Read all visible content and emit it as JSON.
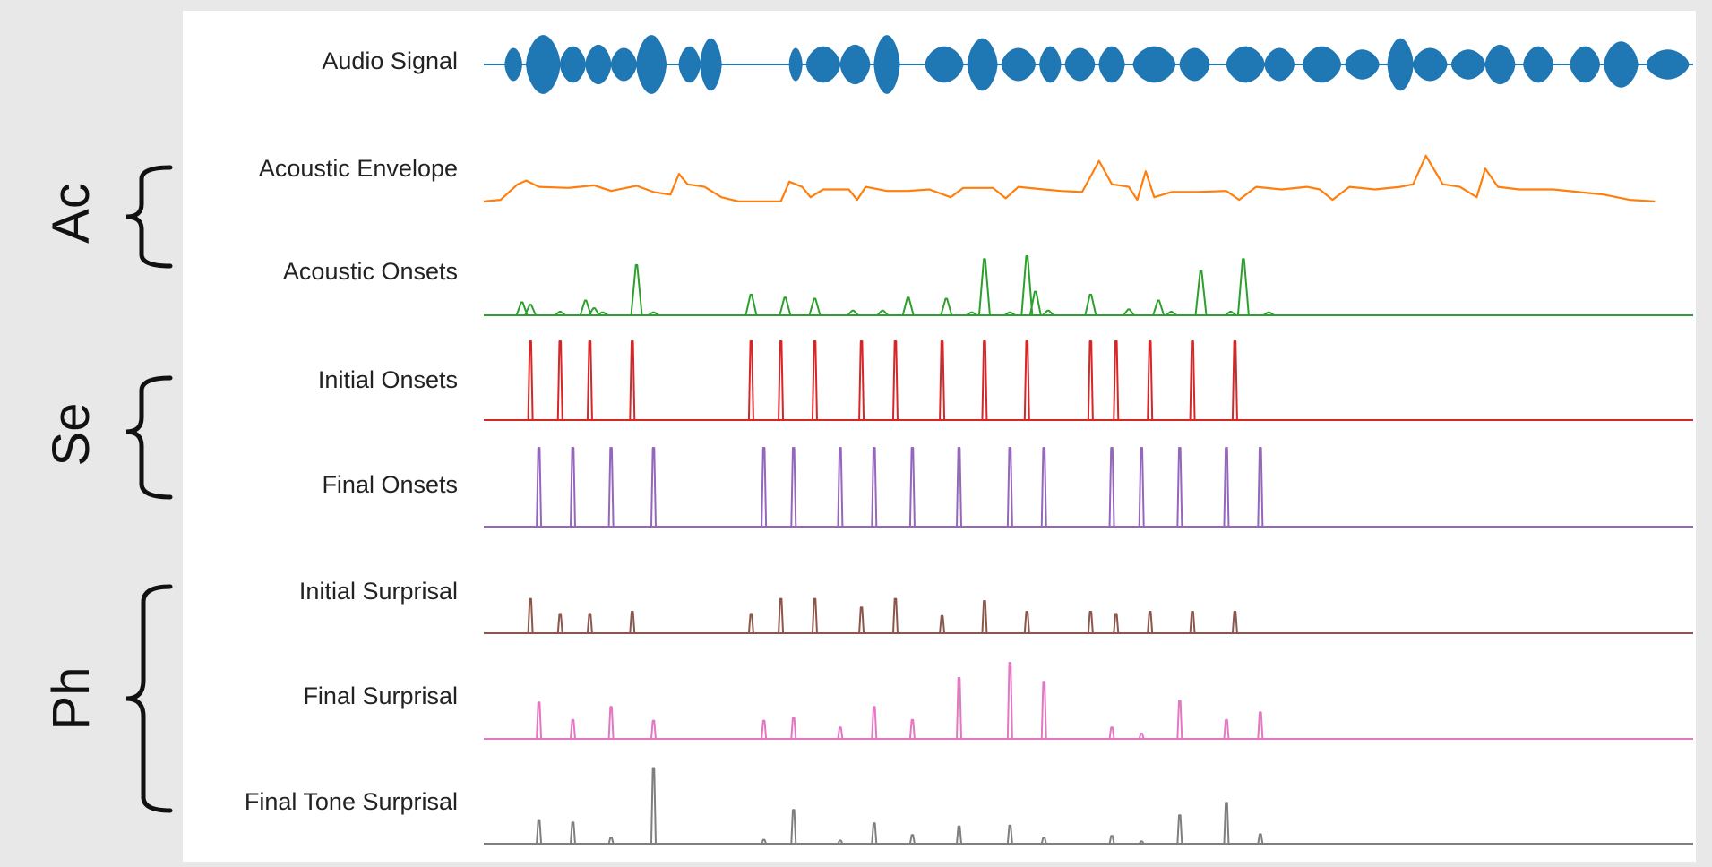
{
  "groups": [
    {
      "label": "Ac",
      "tracks": [
        "envelope",
        "acoustic_onsets"
      ]
    },
    {
      "label": "Se",
      "tracks": [
        "initial_onsets",
        "final_onsets"
      ]
    },
    {
      "label": "Ph",
      "tracks": [
        "initial_surprisal",
        "final_surprisal",
        "final_tone_surprisal"
      ]
    }
  ],
  "tracks": [
    {
      "id": "audio",
      "label": "Audio Signal",
      "color": "#1f77b4",
      "kind": "waveform",
      "segments": [
        [
          0.05,
          0.09,
          0.5
        ],
        [
          0.1,
          0.18,
          0.9
        ],
        [
          0.18,
          0.24,
          0.55
        ],
        [
          0.24,
          0.3,
          0.6
        ],
        [
          0.3,
          0.36,
          0.5
        ],
        [
          0.36,
          0.43,
          0.9
        ],
        [
          0.46,
          0.51,
          0.55
        ],
        [
          0.51,
          0.56,
          0.8
        ],
        [
          0.72,
          0.75,
          0.5
        ],
        [
          0.76,
          0.84,
          0.55
        ],
        [
          0.84,
          0.91,
          0.6
        ],
        [
          0.92,
          0.98,
          0.9
        ],
        [
          1.04,
          1.13,
          0.55
        ],
        [
          1.14,
          1.21,
          0.8
        ],
        [
          1.22,
          1.3,
          0.5
        ],
        [
          1.31,
          1.36,
          0.55
        ],
        [
          1.37,
          1.44,
          0.5
        ],
        [
          1.45,
          1.51,
          0.55
        ],
        [
          1.53,
          1.63,
          0.55
        ],
        [
          1.64,
          1.71,
          0.5
        ],
        [
          1.75,
          1.84,
          0.55
        ],
        [
          1.84,
          1.91,
          0.5
        ],
        [
          1.93,
          2.02,
          0.55
        ],
        [
          2.03,
          2.11,
          0.45
        ],
        [
          2.13,
          2.19,
          0.8
        ],
        [
          2.19,
          2.27,
          0.5
        ],
        [
          2.28,
          2.36,
          0.45
        ],
        [
          2.36,
          2.43,
          0.6
        ],
        [
          2.45,
          2.52,
          0.55
        ],
        [
          2.56,
          2.63,
          0.55
        ],
        [
          2.64,
          2.72,
          0.7
        ],
        [
          2.74,
          2.84,
          0.45
        ]
      ]
    },
    {
      "id": "envelope",
      "label": "Acoustic Envelope",
      "color": "#ff7f0e",
      "kind": "line",
      "points": [
        [
          0,
          0.02
        ],
        [
          0.04,
          0.05
        ],
        [
          0.08,
          0.35
        ],
        [
          0.1,
          0.42
        ],
        [
          0.13,
          0.3
        ],
        [
          0.2,
          0.28
        ],
        [
          0.26,
          0.33
        ],
        [
          0.3,
          0.22
        ],
        [
          0.36,
          0.32
        ],
        [
          0.4,
          0.2
        ],
        [
          0.44,
          0.15
        ],
        [
          0.46,
          0.55
        ],
        [
          0.48,
          0.35
        ],
        [
          0.52,
          0.3
        ],
        [
          0.56,
          0.1
        ],
        [
          0.6,
          0.02
        ],
        [
          0.7,
          0.02
        ],
        [
          0.72,
          0.4
        ],
        [
          0.75,
          0.3
        ],
        [
          0.77,
          0.1
        ],
        [
          0.8,
          0.25
        ],
        [
          0.86,
          0.25
        ],
        [
          0.88,
          0.05
        ],
        [
          0.9,
          0.3
        ],
        [
          0.95,
          0.22
        ],
        [
          1.0,
          0.22
        ],
        [
          1.05,
          0.25
        ],
        [
          1.1,
          0.1
        ],
        [
          1.13,
          0.28
        ],
        [
          1.2,
          0.28
        ],
        [
          1.23,
          0.08
        ],
        [
          1.26,
          0.3
        ],
        [
          1.32,
          0.25
        ],
        [
          1.36,
          0.22
        ],
        [
          1.41,
          0.2
        ],
        [
          1.45,
          0.8
        ],
        [
          1.48,
          0.35
        ],
        [
          1.52,
          0.3
        ],
        [
          1.54,
          0.05
        ],
        [
          1.56,
          0.6
        ],
        [
          1.58,
          0.1
        ],
        [
          1.62,
          0.2
        ],
        [
          1.68,
          0.2
        ],
        [
          1.75,
          0.22
        ],
        [
          1.78,
          0.05
        ],
        [
          1.82,
          0.3
        ],
        [
          1.88,
          0.25
        ],
        [
          1.94,
          0.3
        ],
        [
          1.97,
          0.25
        ],
        [
          2.0,
          0.05
        ],
        [
          2.04,
          0.3
        ],
        [
          2.1,
          0.25
        ],
        [
          2.16,
          0.3
        ],
        [
          2.19,
          0.35
        ],
        [
          2.22,
          0.9
        ],
        [
          2.26,
          0.35
        ],
        [
          2.3,
          0.3
        ],
        [
          2.34,
          0.1
        ],
        [
          2.36,
          0.65
        ],
        [
          2.39,
          0.3
        ],
        [
          2.44,
          0.25
        ],
        [
          2.52,
          0.25
        ],
        [
          2.58,
          0.2
        ],
        [
          2.64,
          0.15
        ],
        [
          2.7,
          0.05
        ],
        [
          2.76,
          0.02
        ]
      ]
    },
    {
      "id": "acoustic_onsets",
      "label": "Acoustic Onsets",
      "color": "#2ca02c",
      "kind": "spikes",
      "sharp": false,
      "events": [
        [
          0.09,
          0.22
        ],
        [
          0.11,
          0.18
        ],
        [
          0.18,
          0.06
        ],
        [
          0.24,
          0.25
        ],
        [
          0.26,
          0.12
        ],
        [
          0.28,
          0.05
        ],
        [
          0.36,
          0.85
        ],
        [
          0.4,
          0.05
        ],
        [
          0.63,
          0.35
        ],
        [
          0.71,
          0.3
        ],
        [
          0.78,
          0.28
        ],
        [
          0.87,
          0.08
        ],
        [
          0.94,
          0.08
        ],
        [
          1.0,
          0.3
        ],
        [
          1.09,
          0.28
        ],
        [
          1.15,
          0.05
        ],
        [
          1.18,
          0.95
        ],
        [
          1.24,
          0.05
        ],
        [
          1.28,
          1.0
        ],
        [
          1.3,
          0.4
        ],
        [
          1.33,
          0.08
        ],
        [
          1.43,
          0.35
        ],
        [
          1.52,
          0.1
        ],
        [
          1.59,
          0.25
        ],
        [
          1.62,
          0.06
        ],
        [
          1.69,
          0.75
        ],
        [
          1.76,
          0.06
        ],
        [
          1.79,
          0.95
        ],
        [
          1.85,
          0.05
        ]
      ]
    },
    {
      "id": "initial_onsets",
      "label": "Initial Onsets",
      "color": "#d62728",
      "kind": "spikes",
      "sharp": true,
      "events": [
        [
          0.11,
          1
        ],
        [
          0.18,
          1
        ],
        [
          0.25,
          1
        ],
        [
          0.35,
          1
        ],
        [
          0.63,
          1
        ],
        [
          0.7,
          1
        ],
        [
          0.78,
          1
        ],
        [
          0.89,
          1
        ],
        [
          0.97,
          1
        ],
        [
          1.08,
          1
        ],
        [
          1.18,
          1
        ],
        [
          1.28,
          1
        ],
        [
          1.43,
          1
        ],
        [
          1.49,
          1
        ],
        [
          1.57,
          1
        ],
        [
          1.67,
          1
        ],
        [
          1.77,
          1
        ]
      ]
    },
    {
      "id": "final_onsets",
      "label": "Final Onsets",
      "color": "#9467bd",
      "kind": "spikes",
      "sharp": true,
      "events": [
        [
          0.13,
          1
        ],
        [
          0.21,
          1
        ],
        [
          0.3,
          1
        ],
        [
          0.4,
          1
        ],
        [
          0.66,
          1
        ],
        [
          0.73,
          1
        ],
        [
          0.84,
          1
        ],
        [
          0.92,
          1
        ],
        [
          1.01,
          1
        ],
        [
          1.12,
          1
        ],
        [
          1.24,
          1
        ],
        [
          1.32,
          1
        ],
        [
          1.48,
          1
        ],
        [
          1.55,
          1
        ],
        [
          1.64,
          1
        ],
        [
          1.75,
          1
        ],
        [
          1.83,
          1
        ]
      ]
    },
    {
      "id": "initial_surprisal",
      "label": "Initial Surprisal",
      "color": "#8c564b",
      "kind": "spikes",
      "sharp": true,
      "events": [
        [
          0.11,
          0.8
        ],
        [
          0.18,
          0.45
        ],
        [
          0.25,
          0.45
        ],
        [
          0.35,
          0.5
        ],
        [
          0.63,
          0.45
        ],
        [
          0.7,
          0.8
        ],
        [
          0.78,
          0.8
        ],
        [
          0.89,
          0.6
        ],
        [
          0.97,
          0.8
        ],
        [
          1.08,
          0.4
        ],
        [
          1.18,
          0.75
        ],
        [
          1.28,
          0.5
        ],
        [
          1.43,
          0.5
        ],
        [
          1.49,
          0.45
        ],
        [
          1.57,
          0.5
        ],
        [
          1.67,
          0.5
        ],
        [
          1.77,
          0.5
        ]
      ]
    },
    {
      "id": "final_surprisal",
      "label": "Final Surprisal",
      "color": "#e377c2",
      "kind": "spikes",
      "sharp": true,
      "events": [
        [
          0.13,
          0.48
        ],
        [
          0.21,
          0.25
        ],
        [
          0.3,
          0.42
        ],
        [
          0.4,
          0.24
        ],
        [
          0.66,
          0.24
        ],
        [
          0.73,
          0.28
        ],
        [
          0.84,
          0.15
        ],
        [
          0.92,
          0.42
        ],
        [
          1.01,
          0.25
        ],
        [
          1.12,
          0.8
        ],
        [
          1.24,
          1.0
        ],
        [
          1.32,
          0.75
        ],
        [
          1.48,
          0.15
        ],
        [
          1.55,
          0.07
        ],
        [
          1.64,
          0.5
        ],
        [
          1.75,
          0.25
        ],
        [
          1.83,
          0.35
        ]
      ]
    },
    {
      "id": "final_tone_surprisal",
      "label": "Final Tone Surprisal",
      "color": "#7f7f7f",
      "kind": "spikes",
      "sharp": true,
      "events": [
        [
          0.13,
          0.3
        ],
        [
          0.21,
          0.27
        ],
        [
          0.3,
          0.08
        ],
        [
          0.4,
          0.96
        ],
        [
          0.66,
          0.05
        ],
        [
          0.73,
          0.43
        ],
        [
          0.84,
          0.04
        ],
        [
          0.92,
          0.26
        ],
        [
          1.01,
          0.11
        ],
        [
          1.12,
          0.22
        ],
        [
          1.24,
          0.23
        ],
        [
          1.32,
          0.08
        ],
        [
          1.48,
          0.1
        ],
        [
          1.55,
          0.03
        ],
        [
          1.64,
          0.36
        ],
        [
          1.75,
          0.52
        ],
        [
          1.83,
          0.12
        ]
      ]
    }
  ],
  "time_range": [
    0,
    2.85
  ]
}
